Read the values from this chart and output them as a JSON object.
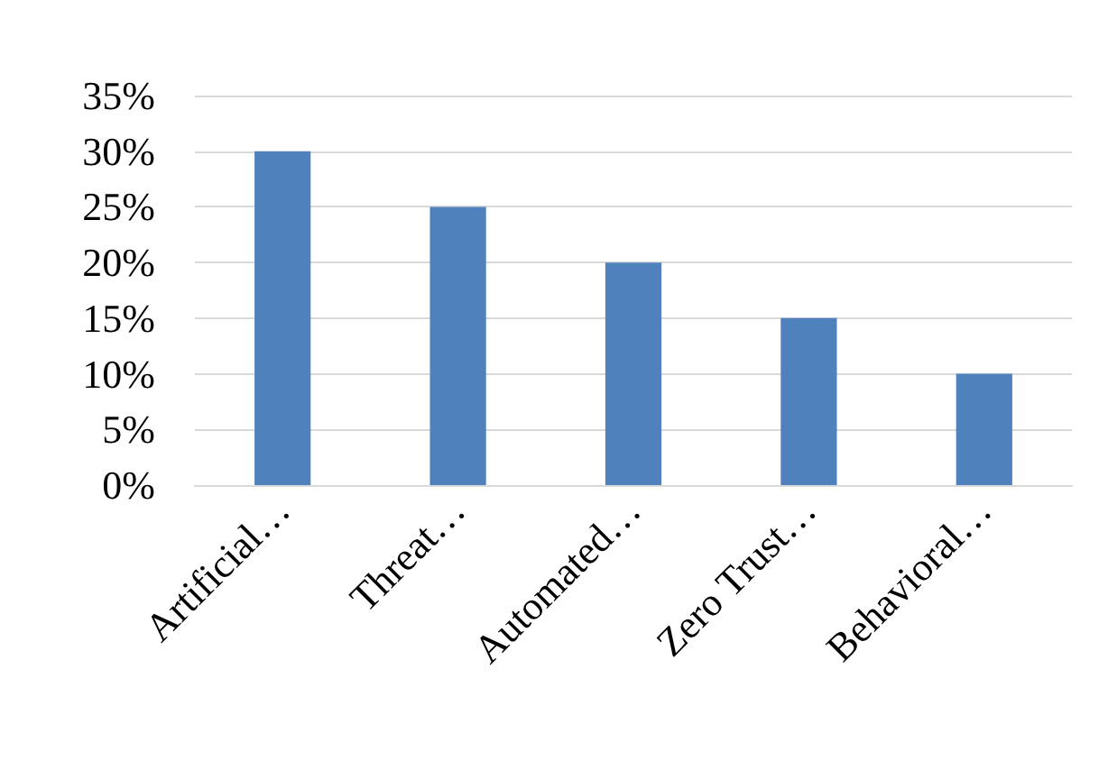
{
  "chart_data": {
    "type": "bar",
    "categories": [
      "Artificial…",
      "Threat…",
      "Automated…",
      "Zero Trust…",
      "Behavioral…"
    ],
    "values": [
      30,
      25,
      20,
      15,
      10
    ],
    "color": "#4f81bd",
    "ylim": [
      0,
      35
    ],
    "yticks": [
      {
        "value": 0,
        "label": "0%"
      },
      {
        "value": 5,
        "label": "5%"
      },
      {
        "value": 10,
        "label": "10%"
      },
      {
        "value": 15,
        "label": "15%"
      },
      {
        "value": 20,
        "label": "20%"
      },
      {
        "value": 25,
        "label": "25%"
      },
      {
        "value": 30,
        "label": "30%"
      },
      {
        "value": 35,
        "label": "35%"
      }
    ],
    "grid": "y"
  }
}
